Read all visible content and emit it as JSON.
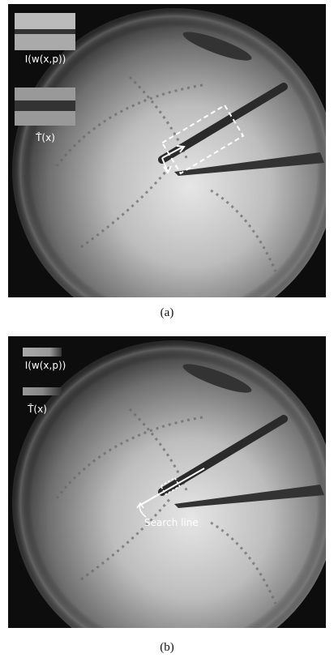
{
  "panel_a": {
    "warped_label": "I(w(x,p))",
    "template_label": "T̂(x)",
    "caption": "(a)"
  },
  "panel_b": {
    "warped_label": "I(w(x,p))",
    "template_label": "T̂(x)",
    "annotation": "Search line",
    "caption": "(b)"
  }
}
